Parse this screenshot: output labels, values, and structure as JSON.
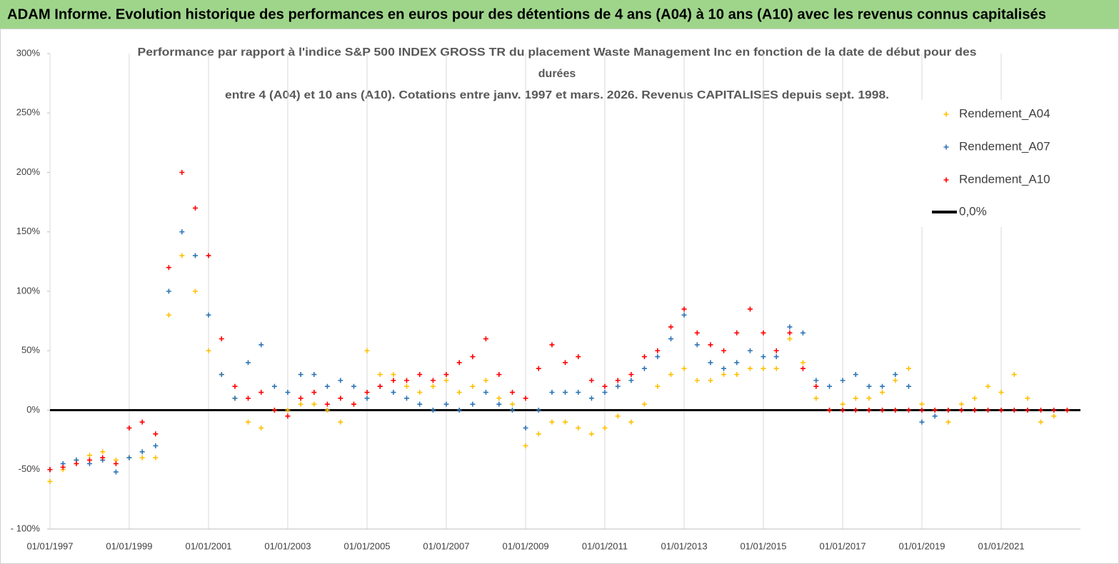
{
  "header": {
    "title": "ADAM Informe. Evolution historique des performances en euros pour des détentions de 4 ans (A04) à 10 ans (A10) avec les revenus connus capitalisés"
  },
  "chart_data": {
    "type": "scatter",
    "title": [
      "Performance par rapport à l'indice S&P 500 INDEX GROSS TR  du placement Waste Management Inc en fonction de la date de début pour des",
      "durées",
      "entre 4 (A04) et 10 ans (A10). Cotations entre janv. 1997 et mars. 2026. Revenus CAPITALISES depuis sept. 1998."
    ],
    "x": [
      "1997-01-01",
      "1997-05-01",
      "1997-09-01",
      "1998-01-01",
      "1998-05-01",
      "1998-09-01",
      "1999-01-01",
      "1999-05-01",
      "1999-09-01",
      "2000-01-01",
      "2000-05-01",
      "2000-09-01",
      "2001-01-01",
      "2001-05-01",
      "2001-09-01",
      "2002-01-01",
      "2002-05-01",
      "2002-09-01",
      "2003-01-01",
      "2003-05-01",
      "2003-09-01",
      "2004-01-01",
      "2004-05-01",
      "2004-09-01",
      "2005-01-01",
      "2005-05-01",
      "2005-09-01",
      "2006-01-01",
      "2006-05-01",
      "2006-09-01",
      "2007-01-01",
      "2007-05-01",
      "2007-09-01",
      "2008-01-01",
      "2008-05-01",
      "2008-09-01",
      "2009-01-01",
      "2009-05-01",
      "2009-09-01",
      "2010-01-01",
      "2010-05-01",
      "2010-09-01",
      "2011-01-01",
      "2011-05-01",
      "2011-09-01",
      "2012-01-01",
      "2012-05-01",
      "2012-09-01",
      "2013-01-01",
      "2013-05-01",
      "2013-09-01",
      "2014-01-01",
      "2014-05-01",
      "2014-09-01",
      "2015-01-01",
      "2015-05-01",
      "2015-09-01",
      "2016-01-01",
      "2016-05-01",
      "2016-09-01",
      "2017-01-01",
      "2017-05-01",
      "2017-09-01",
      "2018-01-01",
      "2018-05-01",
      "2018-09-01",
      "2019-01-01",
      "2019-05-01",
      "2019-09-01",
      "2020-01-01",
      "2020-05-01",
      "2020-09-01",
      "2021-01-01",
      "2021-05-01",
      "2021-09-01",
      "2022-01-01",
      "2022-05-01",
      "2022-09-01"
    ],
    "series": [
      {
        "name": "Rendement_A04",
        "color": "#ffc000",
        "values": [
          -60,
          -50,
          -42,
          -38,
          -35,
          -42,
          -40,
          -40,
          -40,
          80,
          130,
          100,
          50,
          30,
          10,
          -10,
          -15,
          0,
          0,
          5,
          5,
          0,
          -10,
          5,
          50,
          30,
          30,
          20,
          15,
          20,
          25,
          15,
          20,
          25,
          10,
          5,
          -30,
          -20,
          -10,
          -10,
          -15,
          -20,
          -15,
          -5,
          -10,
          5,
          20,
          30,
          35,
          25,
          25,
          30,
          30,
          35,
          35,
          35,
          60,
          40,
          10,
          0,
          5,
          10,
          10,
          15,
          25,
          35,
          5,
          0,
          -10,
          5,
          10,
          20,
          15,
          30,
          10,
          -10,
          -5,
          0
        ]
      },
      {
        "name": "Rendement_A07",
        "color": "#2e75b6",
        "values": [
          -50,
          -45,
          -42,
          -45,
          -42,
          -52,
          -40,
          -35,
          -30,
          100,
          150,
          130,
          80,
          30,
          10,
          40,
          55,
          20,
          15,
          30,
          30,
          20,
          25,
          20,
          10,
          20,
          15,
          10,
          5,
          0,
          5,
          0,
          5,
          15,
          5,
          0,
          -15,
          0,
          15,
          15,
          15,
          10,
          15,
          20,
          25,
          35,
          45,
          60,
          80,
          55,
          40,
          35,
          40,
          50,
          45,
          45,
          70,
          65,
          25,
          20,
          25,
          30,
          20,
          20,
          30,
          20,
          -10,
          -5,
          null,
          null,
          null,
          null,
          null,
          null,
          null,
          null,
          null,
          null
        ]
      },
      {
        "name": "Rendement_A10",
        "color": "#ff0000",
        "values": [
          -50,
          -48,
          -45,
          -42,
          -40,
          -45,
          -15,
          -10,
          -20,
          120,
          200,
          170,
          130,
          60,
          20,
          10,
          15,
          0,
          -5,
          10,
          15,
          5,
          10,
          5,
          15,
          20,
          25,
          25,
          30,
          25,
          30,
          40,
          45,
          60,
          30,
          15,
          10,
          35,
          55,
          40,
          45,
          25,
          20,
          25,
          30,
          45,
          50,
          70,
          85,
          65,
          55,
          50,
          65,
          85,
          65,
          50,
          65,
          35,
          20,
          0,
          0,
          0,
          0,
          0,
          0,
          0,
          0,
          0,
          0,
          0,
          0,
          0,
          0,
          0,
          0,
          0,
          0,
          0
        ]
      }
    ],
    "reference_line": {
      "name": "0,0%",
      "value": 0,
      "color": "#000000"
    },
    "xlim": [
      "1997-01-01",
      "2023-01-01"
    ],
    "xticks": [
      {
        "value": "1997-01-01",
        "label": "01/01/1997"
      },
      {
        "value": "1999-01-01",
        "label": "01/01/1999"
      },
      {
        "value": "2001-01-01",
        "label": "01/01/2001"
      },
      {
        "value": "2003-01-01",
        "label": "01/01/2003"
      },
      {
        "value": "2005-01-01",
        "label": "01/01/2005"
      },
      {
        "value": "2007-01-01",
        "label": "01/01/2007"
      },
      {
        "value": "2009-01-01",
        "label": "01/01/2009"
      },
      {
        "value": "2011-01-01",
        "label": "01/01/2011"
      },
      {
        "value": "2013-01-01",
        "label": "01/01/2013"
      },
      {
        "value": "2015-01-01",
        "label": "01/01/2015"
      },
      {
        "value": "2017-01-01",
        "label": "01/01/2017"
      },
      {
        "value": "2019-01-01",
        "label": "01/01/2019"
      },
      {
        "value": "2021-01-01",
        "label": "01/01/2021"
      }
    ],
    "ylim": [
      -100,
      300
    ],
    "yticks": [
      {
        "value": -100,
        "label": "- 100%"
      },
      {
        "value": -50,
        "label": "-50%"
      },
      {
        "value": 0,
        "label": "0%"
      },
      {
        "value": 50,
        "label": "50%"
      },
      {
        "value": 100,
        "label": "100%"
      },
      {
        "value": 150,
        "label": "150%"
      },
      {
        "value": 200,
        "label": "200%"
      },
      {
        "value": 250,
        "label": "250%"
      },
      {
        "value": 300,
        "label": "300%"
      }
    ],
    "grid": "x"
  }
}
